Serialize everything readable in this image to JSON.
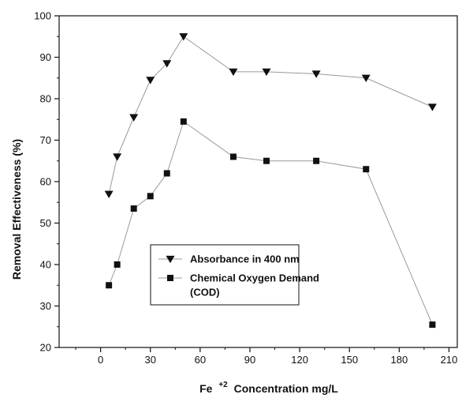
{
  "chart_data": {
    "type": "line",
    "xlabel": {
      "prefix": "Fe",
      "superscript": "+2",
      "suffix": "Concentration mg/L"
    },
    "ylabel": "Removal Effectiveness  (%)",
    "xlim": [
      -25,
      215
    ],
    "ylim": [
      20,
      100
    ],
    "xticks": [
      0,
      30,
      60,
      90,
      120,
      150,
      180,
      210
    ],
    "yticks": [
      20,
      30,
      40,
      50,
      60,
      70,
      80,
      90,
      100
    ],
    "grid": false,
    "legend_position": "lower-center",
    "series": [
      {
        "name": "Absorbance in 400 nm",
        "marker": "triangle-down",
        "x": [
          5,
          10,
          20,
          30,
          40,
          50,
          80,
          100,
          130,
          160,
          200
        ],
        "y": [
          57,
          66,
          75.5,
          84.5,
          88.5,
          95,
          86.5,
          86.5,
          86,
          85,
          78
        ]
      },
      {
        "name": "Chemical Oxygen Demand (COD)",
        "legend_lines": [
          "Chemical Oxygen Demand",
          "(COD)"
        ],
        "marker": "square",
        "x": [
          5,
          10,
          20,
          30,
          40,
          50,
          80,
          100,
          130,
          160,
          200
        ],
        "y": [
          35,
          40,
          53.5,
          56.5,
          62,
          74.5,
          66,
          65,
          65,
          63,
          25.5
        ]
      }
    ],
    "colors": {
      "line": "#999999",
      "marker": "#111111",
      "axis": "#111111"
    }
  }
}
